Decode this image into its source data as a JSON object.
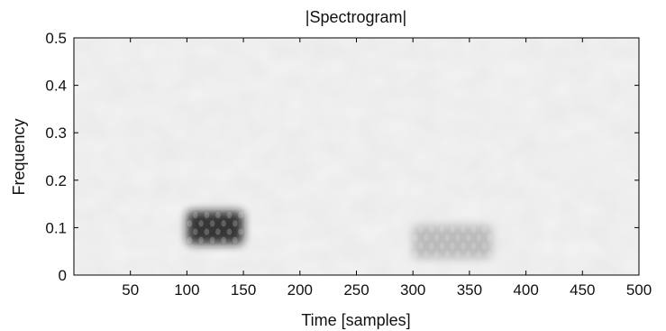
{
  "chart_data": {
    "type": "heatmap",
    "title": "|Spectrogram|",
    "xlabel": "Time [samples]",
    "ylabel": "Frequency",
    "xlim": [
      0,
      500
    ],
    "ylim": [
      0,
      0.5
    ],
    "xticks": [
      50,
      100,
      150,
      200,
      250,
      300,
      350,
      400,
      450,
      500
    ],
    "yticks": [
      0,
      0.1,
      0.2,
      0.3,
      0.4,
      0.5
    ],
    "colormap": "grayscale, darker = higher magnitude",
    "grid": false,
    "blobs": [
      {
        "t_start": 100,
        "t_end": 150,
        "f_center": 0.1,
        "f_halfwidth": 0.035,
        "magnitude": 0.9
      },
      {
        "t_start": 300,
        "t_end": 370,
        "f_center": 0.07,
        "f_halfwidth": 0.035,
        "magnitude": 0.3
      }
    ]
  }
}
